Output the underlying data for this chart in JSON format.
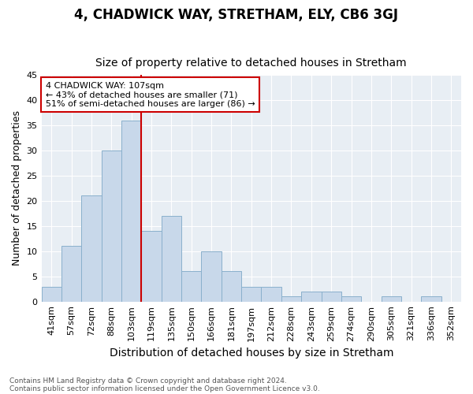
{
  "title1": "4, CHADWICK WAY, STRETHAM, ELY, CB6 3GJ",
  "title2": "Size of property relative to detached houses in Stretham",
  "xlabel": "Distribution of detached houses by size in Stretham",
  "ylabel": "Number of detached properties",
  "categories": [
    "41sqm",
    "57sqm",
    "72sqm",
    "88sqm",
    "103sqm",
    "119sqm",
    "135sqm",
    "150sqm",
    "166sqm",
    "181sqm",
    "197sqm",
    "212sqm",
    "228sqm",
    "243sqm",
    "259sqm",
    "274sqm",
    "290sqm",
    "305sqm",
    "321sqm",
    "336sqm",
    "352sqm"
  ],
  "values": [
    3,
    11,
    21,
    30,
    36,
    14,
    17,
    6,
    10,
    6,
    3,
    3,
    1,
    2,
    2,
    1,
    0,
    1,
    0,
    1,
    0
  ],
  "bar_color": "#c8d8ea",
  "bar_edge_color": "#8ab0cc",
  "vline_x_index": 4,
  "vline_color": "#cc0000",
  "ylim": [
    0,
    45
  ],
  "yticks": [
    0,
    5,
    10,
    15,
    20,
    25,
    30,
    35,
    40,
    45
  ],
  "annotation_text": "4 CHADWICK WAY: 107sqm\n← 43% of detached houses are smaller (71)\n51% of semi-detached houses are larger (86) →",
  "annotation_box_facecolor": "#ffffff",
  "annotation_box_edgecolor": "#cc0000",
  "footer1": "Contains HM Land Registry data © Crown copyright and database right 2024.",
  "footer2": "Contains public sector information licensed under the Open Government Licence v3.0.",
  "bg_color": "#ffffff",
  "plot_bg_color": "#e8eef4",
  "grid_color": "#ffffff",
  "title1_fontsize": 12,
  "title2_fontsize": 10,
  "axis_label_fontsize": 9,
  "tick_fontsize": 8,
  "footer_fontsize": 6.5,
  "annotation_fontsize": 8
}
